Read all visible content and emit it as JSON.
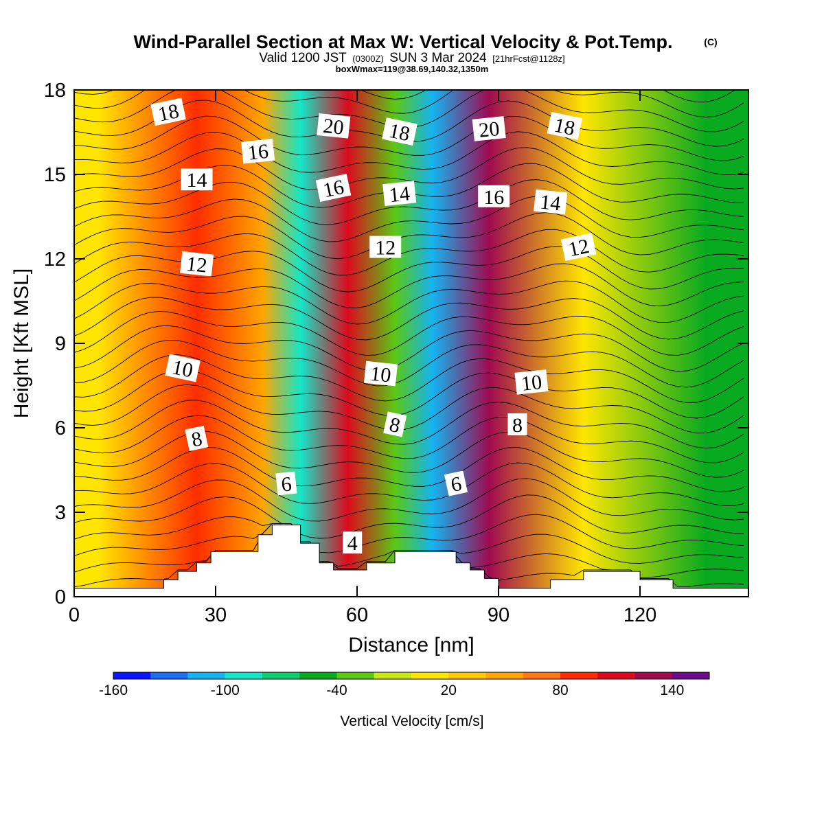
{
  "chart_data": {
    "type": "heatmap",
    "title": "Wind-Parallel Section at Max W: Vertical Velocity & Pot.Temp.",
    "title_mark": "(C)",
    "subtitle_parts": {
      "a": "Valid 1200 JST",
      "b": "(0300Z)",
      "c": "SUN 3 Mar 2024",
      "d": "[21hrFcst@1128z]"
    },
    "info_line": "boxWmax=119@38.69,140.32,1350m",
    "xlabel": "Distance [nm]",
    "ylabel": "Height [Kft MSL]",
    "xlim": [
      0,
      143
    ],
    "ylim": [
      0,
      18
    ],
    "x_ticks": [
      0,
      30,
      60,
      90,
      120
    ],
    "y_ticks": [
      0,
      3,
      6,
      9,
      12,
      15,
      18
    ],
    "colorbar": {
      "label": "Vertical Velocity [cm/s]",
      "tick_values": [
        -160,
        -100,
        -40,
        20,
        80,
        140
      ],
      "tick_labels": [
        "-160",
        "-100",
        "-40",
        "20",
        "80",
        "140"
      ],
      "min": -160,
      "max": 160,
      "step": 20,
      "colors": [
        "#0a14ff",
        "#1e6ef0",
        "#14b4f0",
        "#14e6c8",
        "#10cc70",
        "#08aa20",
        "#5ac814",
        "#c8e614",
        "#ffe600",
        "#ffc800",
        "#ffa500",
        "#ff7814",
        "#ff2d00",
        "#dc0a1e",
        "#a00a50",
        "#6e0a8c"
      ]
    },
    "vertical_velocity_bands": [
      {
        "x_center": 5,
        "w_cm_s": 10
      },
      {
        "x_center": 26,
        "w_cm_s": 90
      },
      {
        "x_center": 40,
        "w_cm_s": 40
      },
      {
        "x_center": 48,
        "w_cm_s": -90
      },
      {
        "x_center": 58,
        "w_cm_s": 110
      },
      {
        "x_center": 68,
        "w_cm_s": -40
      },
      {
        "x_center": 76,
        "w_cm_s": -110
      },
      {
        "x_center": 88,
        "w_cm_s": 120
      },
      {
        "x_center": 108,
        "w_cm_s": 10
      },
      {
        "x_center": 134,
        "w_cm_s": -50
      }
    ],
    "theta_contour_labels": [
      {
        "value": "18",
        "x": 20,
        "y": 17.2
      },
      {
        "value": "16",
        "x": 39,
        "y": 15.8
      },
      {
        "value": "14",
        "x": 26,
        "y": 14.8
      },
      {
        "value": "12",
        "x": 26,
        "y": 11.8
      },
      {
        "value": "10",
        "x": 23,
        "y": 8.1
      },
      {
        "value": "8",
        "x": 26,
        "y": 5.6
      },
      {
        "value": "6",
        "x": 45,
        "y": 4.0
      },
      {
        "value": "4",
        "x": 59,
        "y": 1.9
      },
      {
        "value": "20",
        "x": 55,
        "y": 16.7
      },
      {
        "value": "18",
        "x": 69,
        "y": 16.5
      },
      {
        "value": "16",
        "x": 55,
        "y": 14.5
      },
      {
        "value": "14",
        "x": 69,
        "y": 14.3
      },
      {
        "value": "12",
        "x": 66,
        "y": 12.4
      },
      {
        "value": "10",
        "x": 65,
        "y": 7.9
      },
      {
        "value": "8",
        "x": 68,
        "y": 6.1
      },
      {
        "value": "6",
        "x": 81,
        "y": 4.0
      },
      {
        "value": "20",
        "x": 88,
        "y": 16.6
      },
      {
        "value": "16",
        "x": 89,
        "y": 14.2
      },
      {
        "value": "14",
        "x": 101,
        "y": 14.0
      },
      {
        "value": "18",
        "x": 104,
        "y": 16.7
      },
      {
        "value": "12",
        "x": 107,
        "y": 12.4
      },
      {
        "value": "10",
        "x": 97,
        "y": 7.6
      },
      {
        "value": "8",
        "x": 94,
        "y": 6.1
      }
    ],
    "terrain": [
      [
        0,
        0.3
      ],
      [
        19,
        0.3
      ],
      [
        19,
        0.6
      ],
      [
        22,
        0.6
      ],
      [
        22,
        0.9
      ],
      [
        26,
        0.9
      ],
      [
        26,
        1.2
      ],
      [
        29,
        1.2
      ],
      [
        29,
        1.6
      ],
      [
        39,
        1.6
      ],
      [
        39,
        2.2
      ],
      [
        42,
        2.2
      ],
      [
        42,
        2.55
      ],
      [
        48,
        2.55
      ],
      [
        48,
        1.9
      ],
      [
        52,
        1.9
      ],
      [
        52,
        1.2
      ],
      [
        55,
        1.2
      ],
      [
        55,
        0.95
      ],
      [
        62,
        0.95
      ],
      [
        62,
        1.2
      ],
      [
        68,
        1.2
      ],
      [
        68,
        1.6
      ],
      [
        81,
        1.6
      ],
      [
        81,
        1.2
      ],
      [
        84,
        1.2
      ],
      [
        84,
        0.95
      ],
      [
        87,
        0.95
      ],
      [
        87,
        0.65
      ],
      [
        90,
        0.65
      ],
      [
        90,
        0.3
      ],
      [
        101,
        0.3
      ],
      [
        101,
        0.6
      ],
      [
        108,
        0.6
      ],
      [
        108,
        0.9
      ],
      [
        120,
        0.9
      ],
      [
        120,
        0.6
      ],
      [
        127,
        0.6
      ],
      [
        127,
        0.3
      ],
      [
        143,
        0.3
      ]
    ]
  }
}
